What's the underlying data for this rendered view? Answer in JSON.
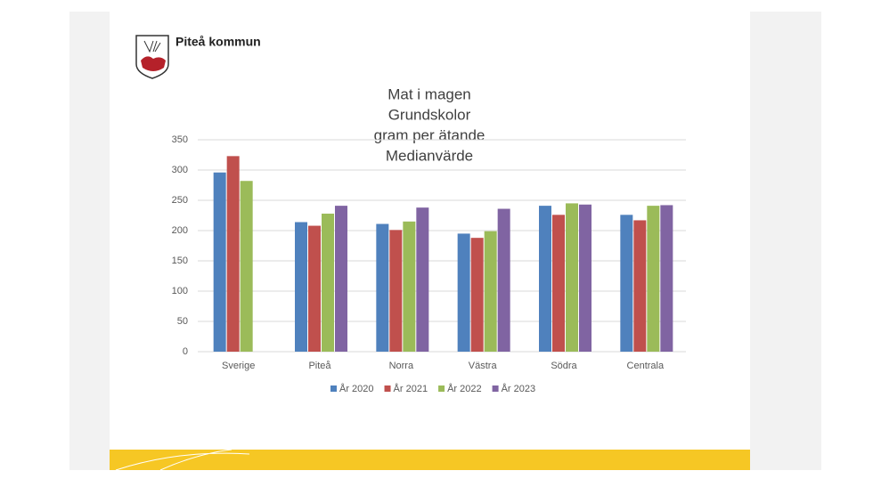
{
  "header": {
    "organization": "Piteå kommun"
  },
  "chart_data": {
    "type": "bar",
    "title": [
      "Mat i magen",
      "Grundskolor",
      "gram per ätande",
      "Medianvärde"
    ],
    "categories": [
      "Sverige",
      "Piteå",
      "Norra",
      "Västra",
      "Södra",
      "Centrala"
    ],
    "series": [
      {
        "name": "År 2020",
        "color": "#4f81bd",
        "values": [
          296,
          214,
          211,
          195,
          241,
          226
        ]
      },
      {
        "name": "År 2021",
        "color": "#c0504d",
        "values": [
          323,
          208,
          201,
          188,
          226,
          217
        ]
      },
      {
        "name": "År 2022",
        "color": "#9bbb59",
        "values": [
          282,
          228,
          215,
          199,
          245,
          241
        ]
      },
      {
        "name": "År 2023",
        "color": "#8064a2",
        "values": [
          null,
          241,
          238,
          236,
          243,
          242
        ]
      }
    ],
    "ylim": [
      0,
      350
    ],
    "yticks": [
      0,
      50,
      100,
      150,
      200,
      250,
      300,
      350
    ],
    "grid": true,
    "legend": "bottom"
  }
}
